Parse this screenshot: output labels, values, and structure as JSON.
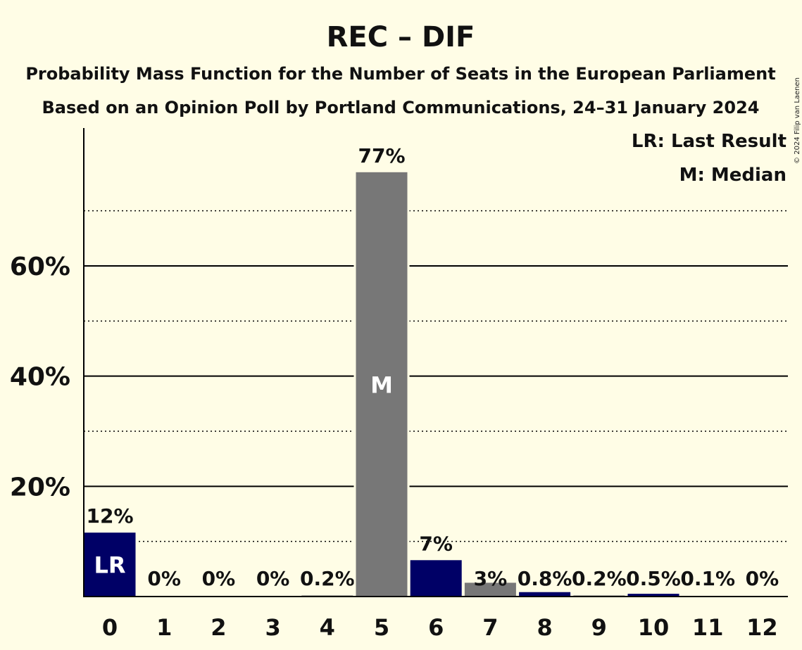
{
  "title": "REC – DIF",
  "subtitle_1": "Probability Mass Function for the Number of Seats in the European Parliament",
  "subtitle_2": "Based on an Opinion Poll by Portland Communications, 24–31 January 2024",
  "copyright": "© 2024 Filip van Laenen",
  "legend": {
    "last_result": "LR: Last Result",
    "median": "M: Median"
  },
  "colors": {
    "background": "#FFFDE6",
    "bar_primary": "#000066",
    "bar_secondary": "#777777",
    "axis": "#000000"
  },
  "chart_data": {
    "type": "bar",
    "categories": [
      "0",
      "1",
      "2",
      "3",
      "4",
      "5",
      "6",
      "7",
      "8",
      "9",
      "10",
      "11",
      "12"
    ],
    "values": [
      11.6,
      0,
      0,
      0,
      0.2,
      77.0,
      6.6,
      2.5,
      0.8,
      0.2,
      0.5,
      0.1,
      0
    ],
    "value_labels": [
      "12%",
      "0%",
      "0%",
      "0%",
      "0.2%",
      "77%",
      "7%",
      "3%",
      "0.8%",
      "0.2%",
      "0.5%",
      "0.1%",
      "0%"
    ],
    "bar_colors": [
      "#000066",
      "#000066",
      "#777777",
      "#000066",
      "#777777",
      "#777777",
      "#000066",
      "#777777",
      "#000066",
      "#777777",
      "#000066",
      "#777777",
      "#000066"
    ],
    "in_bar_labels": {
      "0": "LR",
      "5": "M"
    },
    "ylim": [
      0,
      84
    ],
    "yticks": [
      20,
      40,
      60
    ],
    "ytick_labels": [
      "20%",
      "40%",
      "60%"
    ],
    "minor_gridlines": [
      10,
      30,
      50,
      70
    ],
    "grid": true,
    "legend_position": "top-right"
  }
}
